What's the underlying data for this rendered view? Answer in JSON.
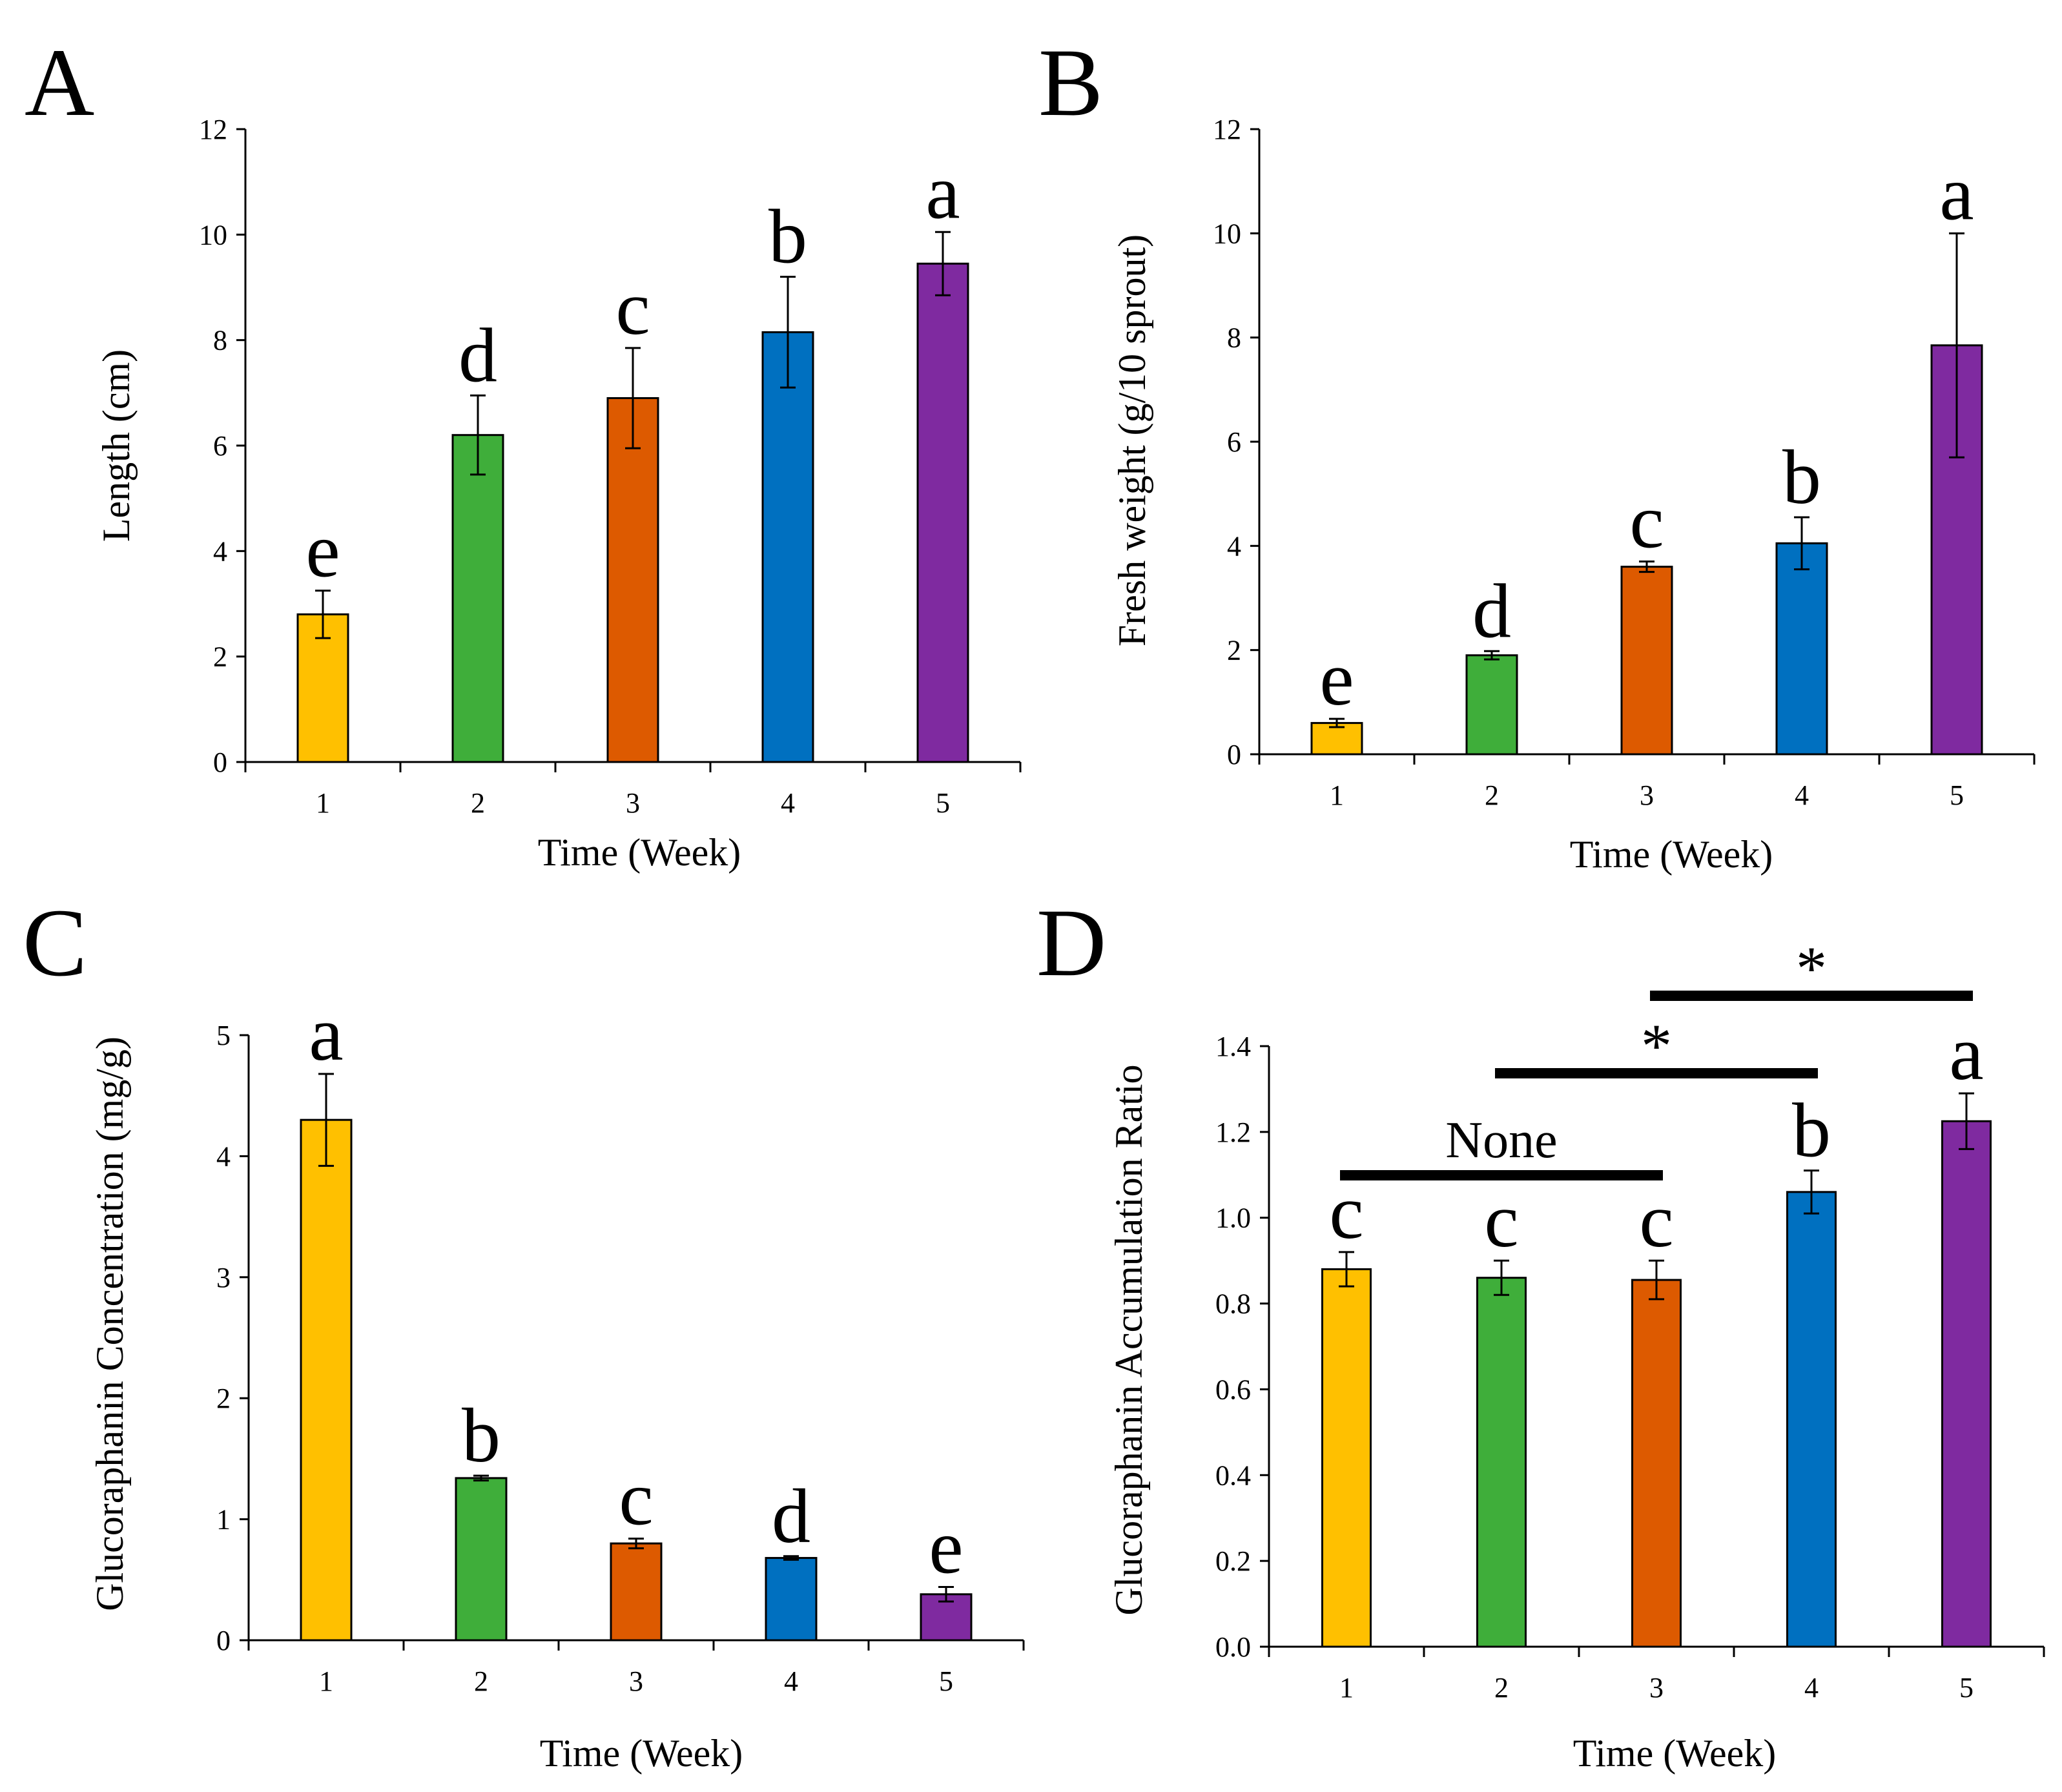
{
  "colors": {
    "week1": "#FFC000",
    "week2": "#3FAE3A",
    "week3": "#DD5A00",
    "week4": "#0070C0",
    "week5": "#7F2AA0"
  },
  "chart_data": [
    {
      "panel": "A",
      "type": "bar",
      "xlabel": "Time (Week)",
      "ylabel": "Length (cm)",
      "categories": [
        "1",
        "2",
        "3",
        "4",
        "5"
      ],
      "values": [
        2.8,
        6.2,
        6.9,
        8.15,
        9.45
      ],
      "errors": [
        0.45,
        0.75,
        0.95,
        1.05,
        0.6
      ],
      "significance": [
        "e",
        "d",
        "c",
        "b",
        "a"
      ],
      "ylim": [
        0,
        12
      ],
      "yticks": [
        "0",
        "2",
        "4",
        "6",
        "8",
        "10",
        "12"
      ],
      "grid": false,
      "legend": "none"
    },
    {
      "panel": "B",
      "type": "bar",
      "xlabel": "Time (Week)",
      "ylabel": "Fresh weight  (g/10 sprout)",
      "categories": [
        "1",
        "2",
        "3",
        "4",
        "5"
      ],
      "values": [
        0.6,
        1.9,
        3.6,
        4.05,
        7.85
      ],
      "errors": [
        0.08,
        0.08,
        0.1,
        0.5,
        2.15
      ],
      "significance": [
        "e",
        "d",
        "c",
        "b",
        "a"
      ],
      "ylim": [
        0,
        12
      ],
      "yticks": [
        "0",
        "2",
        "4",
        "6",
        "8",
        "10",
        "12"
      ],
      "grid": false,
      "legend": "none"
    },
    {
      "panel": "C",
      "type": "bar",
      "xlabel": "Time (Week)",
      "ylabel": "Glucoraphanin Concentration (mg/g)",
      "categories": [
        "1",
        "2",
        "3",
        "4",
        "5"
      ],
      "values": [
        4.3,
        1.34,
        0.8,
        0.68,
        0.38
      ],
      "errors": [
        0.38,
        0.02,
        0.04,
        0.015,
        0.06
      ],
      "significance": [
        "a",
        "b",
        "c",
        "d",
        "e"
      ],
      "ylim": [
        0,
        5
      ],
      "yticks": [
        "0",
        "1",
        "2",
        "3",
        "4",
        "5"
      ],
      "grid": false,
      "legend": "none"
    },
    {
      "panel": "D",
      "type": "bar",
      "xlabel": "Time (Week)",
      "ylabel": "Glucoraphanin Accumulation Ratio",
      "categories": [
        "1",
        "2",
        "3",
        "4",
        "5"
      ],
      "values": [
        0.88,
        0.86,
        0.855,
        1.06,
        1.225
      ],
      "errors": [
        0.04,
        0.04,
        0.045,
        0.05,
        0.065
      ],
      "significance": [
        "c",
        "c",
        "c",
        "b",
        "a"
      ],
      "ylim": [
        0,
        1.4
      ],
      "yticks": [
        "0.0",
        "0.2",
        "0.4",
        "0.6",
        "0.8",
        "1.0",
        "1.2",
        "1.4"
      ],
      "grid": false,
      "legend": "none",
      "comparisons": [
        {
          "from": "1",
          "to": "3",
          "label": "None"
        },
        {
          "from": "2",
          "to": "4",
          "label": "*"
        },
        {
          "from": "3",
          "to": "5",
          "label": "*"
        }
      ]
    }
  ]
}
